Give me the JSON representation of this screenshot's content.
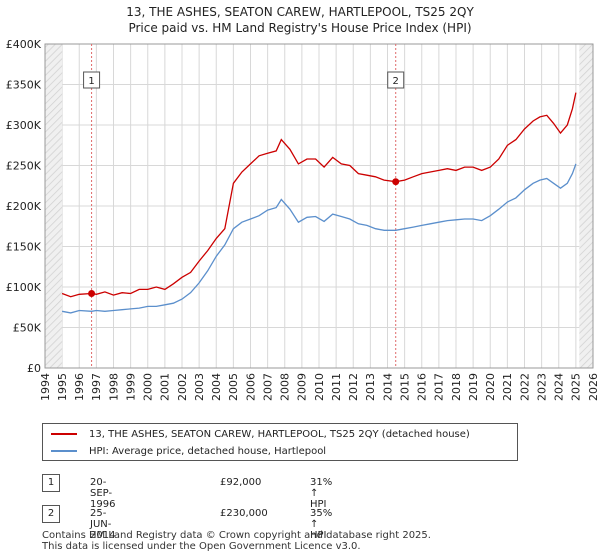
{
  "header": {
    "title_line1": "13, THE ASHES, SEATON CAREW, HARTLEPOOL, TS25 2QY",
    "title_line2": "Price paid vs. HM Land Registry's House Price Index (HPI)"
  },
  "legend": {
    "property_label": "13, THE ASHES, SEATON CAREW, HARTLEPOOL, TS25 2QY (detached house)",
    "hpi_label": "HPI: Average price, detached house, Hartlepool"
  },
  "transactions": [
    {
      "id": "1",
      "date": "20-SEP-1996",
      "price": "£92,000",
      "hpi_diff": "31% ↑ HPI"
    },
    {
      "id": "2",
      "date": "25-JUN-2014",
      "price": "£230,000",
      "hpi_diff": "35% ↑ HPI"
    }
  ],
  "footer": {
    "line1": "Contains HM Land Registry data © Crown copyright and database right 2025.",
    "line2": "This data is licensed under the Open Government Licence v3.0."
  },
  "colors": {
    "property": "#cc0000",
    "hpi": "#5b8fcc",
    "grid": "#d8d8d8",
    "marker_line": "#e06a6a"
  },
  "chart_data": {
    "type": "line",
    "title": "13, THE ASHES, SEATON CAREW, HARTLEPOOL, TS25 2QY",
    "subtitle": "Price paid vs. HM Land Registry's House Price Index (HPI)",
    "xlabel": "",
    "ylabel": "",
    "xlim": [
      1994,
      2026
    ],
    "ylim": [
      0,
      400000
    ],
    "x_ticks": [
      1994,
      1995,
      1996,
      1997,
      1998,
      1999,
      2000,
      2001,
      2002,
      2003,
      2004,
      2005,
      2006,
      2007,
      2008,
      2009,
      2010,
      2011,
      2012,
      2013,
      2014,
      2015,
      2016,
      2017,
      2018,
      2019,
      2020,
      2021,
      2022,
      2023,
      2024,
      2025,
      2026
    ],
    "y_ticks": [
      {
        "value": 0,
        "label": "£0"
      },
      {
        "value": 50000,
        "label": "£50K"
      },
      {
        "value": 100000,
        "label": "£100K"
      },
      {
        "value": 150000,
        "label": "£150K"
      },
      {
        "value": 200000,
        "label": "£200K"
      },
      {
        "value": 250000,
        "label": "£250K"
      },
      {
        "value": 300000,
        "label": "£300K"
      },
      {
        "value": 350000,
        "label": "£350K"
      },
      {
        "value": 400000,
        "label": "£400K"
      }
    ],
    "grid": true,
    "data_range": [
      1995,
      2025.2
    ],
    "sales": [
      {
        "id": "1",
        "x": 1996.72,
        "y": 92000
      },
      {
        "id": "2",
        "x": 2014.48,
        "y": 230000
      }
    ],
    "series": [
      {
        "name": "13, THE ASHES, SEATON CAREW, HARTLEPOOL, TS25 2QY (detached house)",
        "x": [
          1995,
          1995.5,
          1996,
          1996.72,
          1997,
          1997.5,
          1998,
          1998.5,
          1999,
          1999.5,
          2000,
          2000.5,
          2001,
          2001.5,
          2002,
          2002.5,
          2003,
          2003.5,
          2004,
          2004.5,
          2005,
          2005.5,
          2006,
          2006.5,
          2007,
          2007.5,
          2007.8,
          2008.3,
          2008.8,
          2009.3,
          2009.8,
          2010.3,
          2010.8,
          2011.3,
          2011.8,
          2012.3,
          2012.8,
          2013.3,
          2013.8,
          2014.48,
          2015,
          2015.5,
          2016,
          2016.5,
          2017,
          2017.5,
          2018,
          2018.5,
          2019,
          2019.5,
          2020,
          2020.5,
          2021,
          2021.5,
          2022,
          2022.5,
          2022.9,
          2023.3,
          2023.7,
          2024.1,
          2024.5,
          2024.8,
          2025.0
        ],
        "y": [
          92000,
          88000,
          91000,
          92000,
          91000,
          94000,
          90000,
          93000,
          92000,
          97000,
          97000,
          100000,
          97000,
          104000,
          112000,
          118000,
          132000,
          145000,
          160000,
          172000,
          228000,
          242000,
          252000,
          262000,
          265000,
          268000,
          282000,
          270000,
          252000,
          258000,
          258000,
          248000,
          260000,
          252000,
          250000,
          240000,
          238000,
          236000,
          232000,
          230000,
          232000,
          236000,
          240000,
          242000,
          244000,
          246000,
          244000,
          248000,
          248000,
          244000,
          248000,
          258000,
          275000,
          282000,
          295000,
          305000,
          310000,
          312000,
          302000,
          290000,
          300000,
          320000,
          340000
        ]
      },
      {
        "name": "HPI: Average price, detached house, Hartlepool",
        "x": [
          1995,
          1995.5,
          1996,
          1996.72,
          1997,
          1997.5,
          1998,
          1998.5,
          1999,
          1999.5,
          2000,
          2000.5,
          2001,
          2001.5,
          2002,
          2002.5,
          2003,
          2003.5,
          2004,
          2004.5,
          2005,
          2005.5,
          2006,
          2006.5,
          2007,
          2007.5,
          2007.8,
          2008.3,
          2008.8,
          2009.3,
          2009.8,
          2010.3,
          2010.8,
          2011.3,
          2011.8,
          2012.3,
          2012.8,
          2013.3,
          2013.8,
          2014.48,
          2015,
          2015.5,
          2016,
          2016.5,
          2017,
          2017.5,
          2018,
          2018.5,
          2019,
          2019.5,
          2020,
          2020.5,
          2021,
          2021.5,
          2022,
          2022.5,
          2022.9,
          2023.3,
          2023.7,
          2024.1,
          2024.5,
          2024.8,
          2025.0
        ],
        "y": [
          70000,
          68000,
          71000,
          70000,
          71000,
          70000,
          71000,
          72000,
          73000,
          74000,
          76000,
          76000,
          78000,
          80000,
          85000,
          93000,
          105000,
          120000,
          138000,
          152000,
          172000,
          180000,
          184000,
          188000,
          195000,
          198000,
          208000,
          196000,
          180000,
          186000,
          187000,
          181000,
          190000,
          187000,
          184000,
          178000,
          176000,
          172000,
          170000,
          170000,
          172000,
          174000,
          176000,
          178000,
          180000,
          182000,
          183000,
          184000,
          184000,
          182000,
          188000,
          196000,
          205000,
          210000,
          220000,
          228000,
          232000,
          234000,
          228000,
          222000,
          228000,
          240000,
          252000
        ]
      }
    ]
  }
}
